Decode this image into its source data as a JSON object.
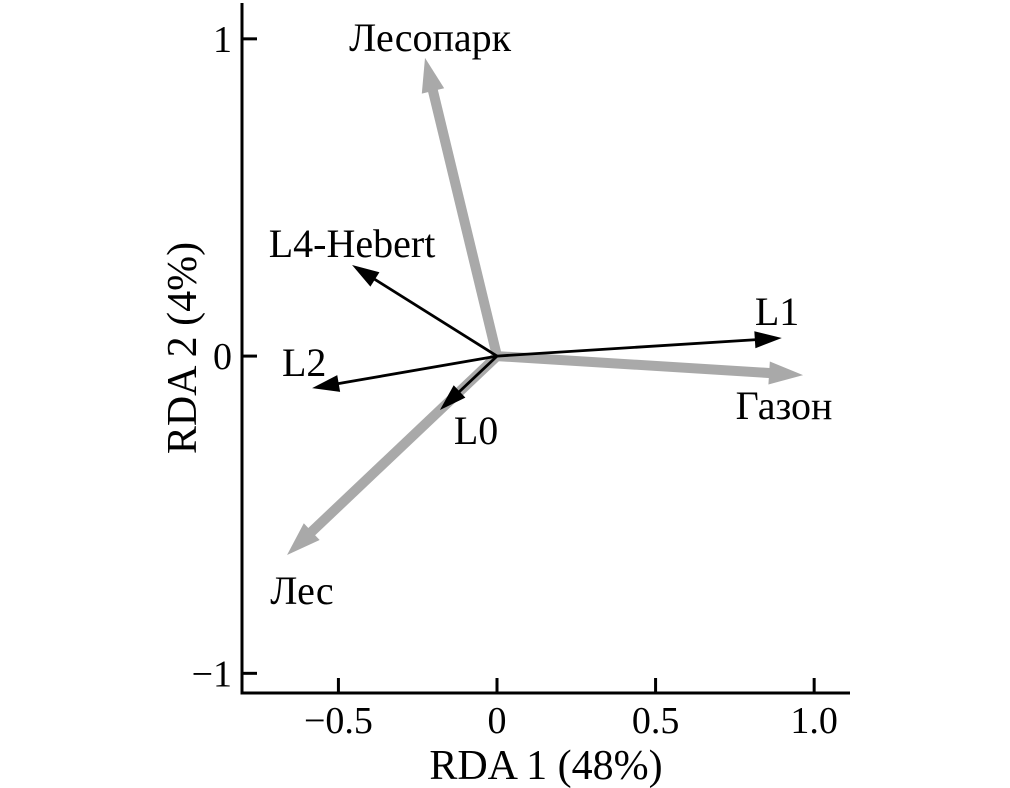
{
  "figure": {
    "background": "#ffffff"
  },
  "chart_data": {
    "type": "biplot",
    "title": "",
    "xlabel": "RDA 1 (48%)",
    "ylabel": "RDA 2 (4%)",
    "axes": {
      "xlim": [
        -0.804,
        1.113
      ],
      "ylim": [
        -1.062,
        1.113
      ],
      "grid": false,
      "x_ticks": {
        "values": [
          -0.5,
          0,
          0.5,
          1.0
        ],
        "labels": [
          "−0.5",
          "0",
          "0.5",
          "1.0"
        ]
      },
      "y_ticks": {
        "values": [
          -1,
          0,
          1
        ],
        "labels": [
          "−1",
          "0",
          "1"
        ]
      }
    },
    "series": [
      {
        "name": "gray_thick_arrows",
        "style": "env",
        "arrows": [
          {
            "label": "Лесопарк",
            "x": -0.227,
            "y": 0.94,
            "label_at": [
              -0.211,
              1.006
            ]
          },
          {
            "label": "Газон",
            "x": 0.965,
            "y": -0.06,
            "label_at": [
              0.905,
              -0.154
            ]
          },
          {
            "label": "Лес",
            "x": -0.662,
            "y": -0.627,
            "label_at": [
              -0.615,
              -0.738
            ]
          }
        ]
      },
      {
        "name": "black_thin_arrows",
        "style": "sp",
        "arrows": [
          {
            "label": "L4-Hebert",
            "x": -0.457,
            "y": 0.287,
            "label_at": [
              -0.457,
              0.356
            ]
          },
          {
            "label": "L2",
            "x": -0.583,
            "y": -0.101,
            "label_at": [
              -0.608,
              -0.019
            ]
          },
          {
            "label": "L1",
            "x": 0.898,
            "y": 0.057,
            "label_at": [
              0.883,
              0.142
            ]
          },
          {
            "label": "L0",
            "x": -0.18,
            "y": -0.17,
            "label_at": [
              -0.066,
              -0.233
            ]
          }
        ]
      }
    ],
    "colors": {
      "env_arrow": "#a9a9a9",
      "species_arrow": "#000000",
      "axis": "#000000",
      "text": "#000000",
      "background": "#ffffff"
    }
  }
}
